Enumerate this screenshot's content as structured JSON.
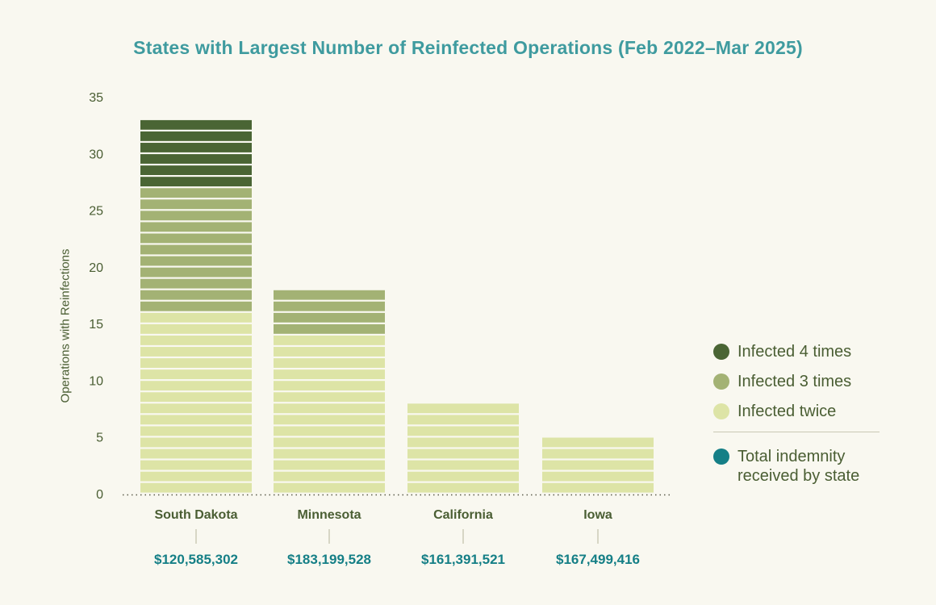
{
  "chart_data": {
    "type": "bar",
    "stacked": true,
    "title": "States with Largest Number of Reinfected Operations (Feb 2022–Mar 2025)",
    "ylabel": "Operations with Reinfections",
    "ylim": [
      0,
      35
    ],
    "yticks": [
      0,
      5,
      10,
      15,
      20,
      25,
      30,
      35
    ],
    "categories": [
      "South Dakota",
      "Minnesota",
      "California",
      "Iowa"
    ],
    "indemnity": [
      "$120,585,302",
      "$183,199,528",
      "$161,391,521",
      "$167,499,416"
    ],
    "series": [
      {
        "name": "Infected twice",
        "values": [
          16,
          14,
          8,
          5
        ],
        "color": "#dde4a6"
      },
      {
        "name": "Infected 3 times",
        "values": [
          11,
          4,
          0,
          0
        ],
        "color": "#a3b274"
      },
      {
        "name": "Infected 4 times",
        "values": [
          6,
          0,
          0,
          0
        ],
        "color": "#4a6534"
      }
    ],
    "legend": {
      "placement": "right",
      "items": [
        {
          "label": "Infected 4 times",
          "color": "#4a6534"
        },
        {
          "label": "Infected 3 times",
          "color": "#a3b274"
        },
        {
          "label": "Infected twice",
          "color": "#dde4a6"
        }
      ],
      "total_label": "Total indemnity received by state",
      "total_color": "#157f86"
    },
    "grid": false
  }
}
